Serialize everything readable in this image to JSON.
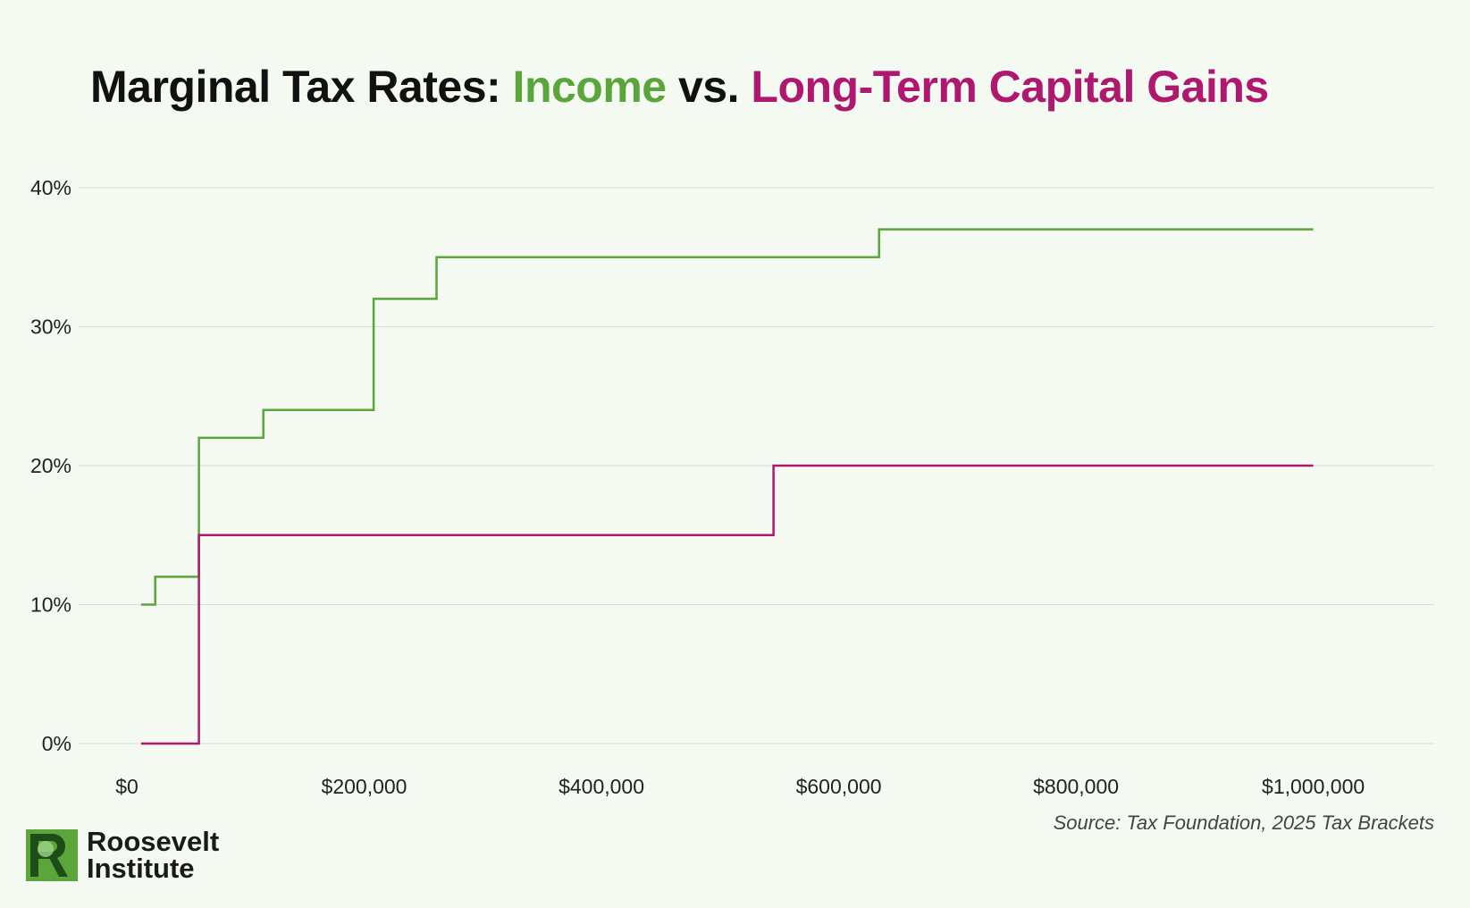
{
  "title": {
    "part1": "Marginal Tax Rates: ",
    "income": "Income",
    "vs": " vs. ",
    "capital_gains": "Long-Term Capital Gains"
  },
  "colors": {
    "income": "#5aa63a",
    "capital_gains": "#b0176e",
    "grid": "#d9ddd6",
    "background": "#f4f9f1"
  },
  "chart_data": {
    "type": "line",
    "step": true,
    "xlim": [
      0,
      1050000
    ],
    "ylim": [
      0,
      40
    ],
    "x_ticks": [
      0,
      200000,
      400000,
      600000,
      800000,
      1000000
    ],
    "x_tick_labels": [
      "$0",
      "$200,000",
      "$400,000",
      "$600,000",
      "$800,000",
      "$1,000,000"
    ],
    "y_ticks": [
      0,
      10,
      20,
      30,
      40
    ],
    "y_tick_labels": [
      "0%",
      "10%",
      "20%",
      "30%",
      "40%"
    ],
    "grid": "horizontal",
    "series": [
      {
        "color_key": "income",
        "points": [
          [
            12000,
            10
          ],
          [
            23900,
            10
          ],
          [
            23900,
            12
          ],
          [
            60700,
            12
          ],
          [
            60700,
            22
          ],
          [
            115000,
            22
          ],
          [
            115000,
            24
          ],
          [
            208000,
            24
          ],
          [
            208000,
            32
          ],
          [
            261000,
            32
          ],
          [
            261000,
            35
          ],
          [
            634000,
            35
          ],
          [
            634000,
            37
          ],
          [
            1000000,
            37
          ]
        ]
      },
      {
        "color_key": "capital_gains",
        "points": [
          [
            12000,
            0
          ],
          [
            60700,
            0
          ],
          [
            60700,
            15
          ],
          [
            545000,
            15
          ],
          [
            545000,
            20
          ],
          [
            1000000,
            20
          ]
        ]
      }
    ]
  },
  "source": "Source: Tax Foundation, 2025 Tax Brackets",
  "logo": {
    "line1": "Roosevelt",
    "line2": "Institute"
  }
}
